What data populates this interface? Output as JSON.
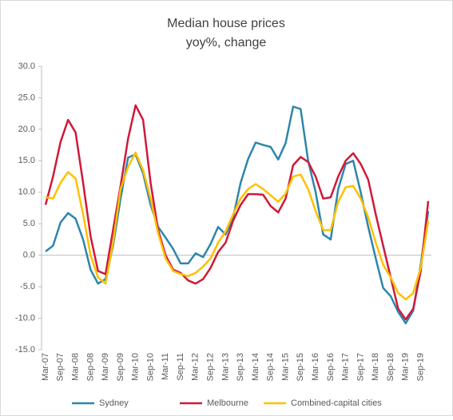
{
  "chart_data": {
    "type": "line",
    "title": "Median house prices",
    "subtitle": "yoy%, change",
    "categories": [
      "Mar-07",
      null,
      "Sep-07",
      null,
      "Mar-08",
      null,
      "Sep-08",
      null,
      "Mar-09",
      null,
      "Sep-09",
      null,
      "Mar-10",
      null,
      "Sep-10",
      null,
      "Mar-11",
      null,
      "Sep-11",
      null,
      "Mar-12",
      null,
      "Sep-12",
      null,
      "Mar-13",
      null,
      "Sep-13",
      null,
      "Mar-14",
      null,
      "Sep-14",
      null,
      "Mar-15",
      null,
      "Sep-15",
      null,
      "Mar-16",
      null,
      "Sep-16",
      null,
      "Mar-17",
      null,
      "Sep-17",
      null,
      "Mar-18",
      null,
      "Sep-18",
      null,
      "Mar-19",
      null,
      "Sep-19",
      null
    ],
    "series": [
      {
        "name": "Sydney",
        "color": "#2e86ab",
        "values": [
          0.6,
          1.5,
          5.2,
          6.7,
          5.8,
          2.5,
          -2.3,
          -4.5,
          -3.8,
          1.5,
          9.0,
          15.5,
          16.0,
          13.0,
          8.0,
          4.5,
          2.8,
          1.0,
          -1.3,
          -1.3,
          0.3,
          -0.3,
          1.8,
          4.5,
          3.3,
          6.0,
          11.5,
          15.3,
          17.9,
          17.5,
          17.2,
          15.2,
          17.8,
          23.6,
          23.2,
          15.0,
          10.0,
          3.3,
          2.5,
          10.5,
          14.5,
          15.0,
          10.0,
          4.5,
          -0.5,
          -5.2,
          -6.5,
          -9.0,
          -10.8,
          -8.8,
          -1.5,
          7.0
        ]
      },
      {
        "name": "Melbourne",
        "color": "#d0193a",
        "values": [
          8.0,
          12.5,
          18.0,
          21.5,
          19.5,
          11.5,
          3.0,
          -2.5,
          -3.0,
          4.0,
          11.0,
          18.5,
          23.8,
          21.5,
          11.5,
          4.0,
          0.0,
          -2.3,
          -2.8,
          -4.0,
          -4.5,
          -3.8,
          -2.0,
          0.5,
          2.0,
          5.5,
          8.0,
          9.7,
          9.7,
          9.6,
          7.8,
          6.8,
          9.0,
          14.3,
          15.6,
          14.8,
          12.5,
          9.0,
          9.2,
          12.5,
          15.0,
          16.2,
          14.5,
          12.0,
          6.5,
          1.5,
          -3.5,
          -8.5,
          -10.2,
          -8.5,
          -2.5,
          8.6
        ]
      },
      {
        "name": "Combined-capital cities",
        "color": "#ffc000",
        "values": [
          9.2,
          9.0,
          11.5,
          13.2,
          12.2,
          6.5,
          0.0,
          -3.5,
          -4.5,
          2.0,
          10.5,
          14.0,
          16.3,
          13.5,
          9.0,
          3.5,
          -0.5,
          -2.5,
          -3.0,
          -3.3,
          -2.8,
          -1.8,
          -0.5,
          2.0,
          3.8,
          6.5,
          9.0,
          10.5,
          11.3,
          10.5,
          9.5,
          8.5,
          9.8,
          12.5,
          12.8,
          10.5,
          7.0,
          4.0,
          4.0,
          8.5,
          10.8,
          11.0,
          9.0,
          6.0,
          2.0,
          -1.5,
          -3.5,
          -6.0,
          -7.0,
          -6.0,
          -2.0,
          5.5
        ]
      }
    ],
    "ylim": [
      -15,
      30
    ],
    "yticks": [
      {
        "value": -15,
        "label": "-15.0"
      },
      {
        "value": -10,
        "label": "-10.0"
      },
      {
        "value": -5,
        "label": "-5.0"
      },
      {
        "value": 0,
        "label": "0.0"
      },
      {
        "value": 5,
        "label": "5.0"
      },
      {
        "value": 10,
        "label": "10.0"
      },
      {
        "value": 15,
        "label": "15.0"
      },
      {
        "value": 20,
        "label": "20.0"
      },
      {
        "value": 25,
        "label": "25.0"
      },
      {
        "value": 30,
        "label": "30.0"
      }
    ],
    "grid": false
  }
}
